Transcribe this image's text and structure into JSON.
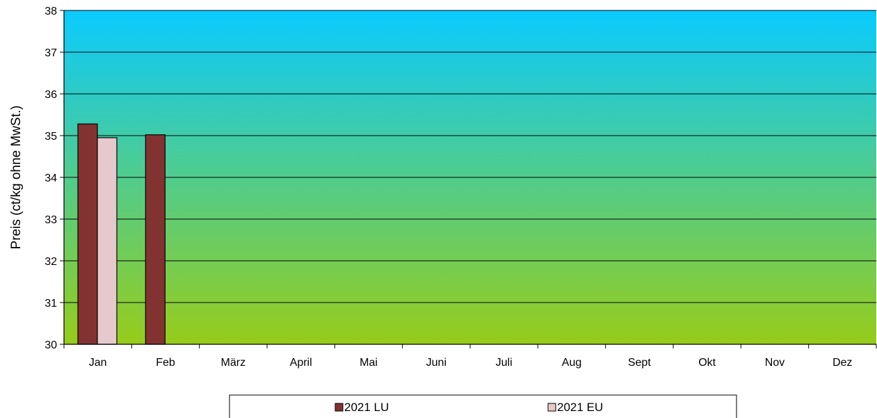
{
  "chart_data": {
    "type": "bar",
    "title": "",
    "xlabel": "",
    "ylabel": "Preis (ct/kg ohne MwSt.)",
    "ylim": [
      30,
      38
    ],
    "yticks": [
      "30",
      "31",
      "32",
      "33",
      "34",
      "35",
      "36",
      "37",
      "38"
    ],
    "grid": true,
    "legend_position": "bottom",
    "categories": [
      "Jan",
      "Feb",
      "März",
      "April",
      "Mai",
      "Juni",
      "Juli",
      "Aug",
      "Sept",
      "Okt",
      "Nov",
      "Dez"
    ],
    "series": [
      {
        "name": "2021 LU",
        "color": "#833232",
        "values": [
          35.28,
          35.02,
          null,
          null,
          null,
          null,
          null,
          null,
          null,
          null,
          null,
          null
        ]
      },
      {
        "name": "2021 EU",
        "color": "#e6c9cd",
        "values": [
          34.95,
          null,
          null,
          null,
          null,
          null,
          null,
          null,
          null,
          null,
          null,
          null
        ]
      }
    ],
    "background_gradient": {
      "top": "#0acbff",
      "bottom": "#97cc1a"
    }
  }
}
